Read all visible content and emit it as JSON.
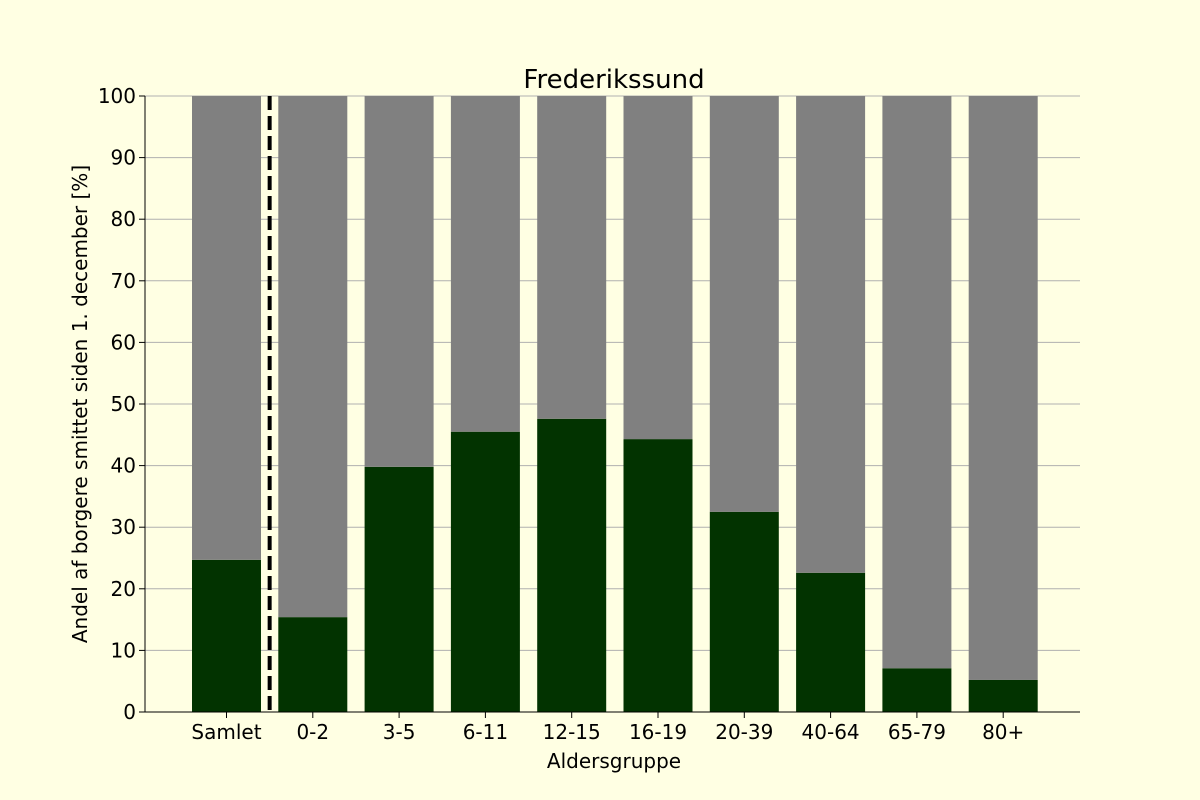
{
  "chart_data": {
    "type": "bar",
    "stacked": true,
    "title": "Frederikssund",
    "xlabel": "Aldersgruppe",
    "ylabel": "Andel af borgere smittet siden 1. december [%]",
    "categories": [
      "Samlet",
      "0-2",
      "3-5",
      "6-11",
      "12-15",
      "16-19",
      "20-39",
      "40-64",
      "65-79",
      "80+"
    ],
    "series": [
      {
        "values": [
          24.7,
          15.4,
          39.8,
          45.5,
          47.6,
          44.3,
          32.5,
          22.6,
          7.1,
          5.2
        ],
        "color": "#023300"
      },
      {
        "values": [
          75.3,
          84.6,
          60.2,
          54.5,
          52.4,
          55.7,
          67.5,
          77.4,
          92.9,
          94.8
        ],
        "color": "#808080"
      }
    ],
    "ylim": [
      0,
      100
    ],
    "yticks": [
      0,
      10,
      20,
      30,
      40,
      50,
      60,
      70,
      80,
      90,
      100
    ],
    "grid": "horizontal",
    "separator_after_category": "Samlet",
    "background": "#ffffe3"
  }
}
